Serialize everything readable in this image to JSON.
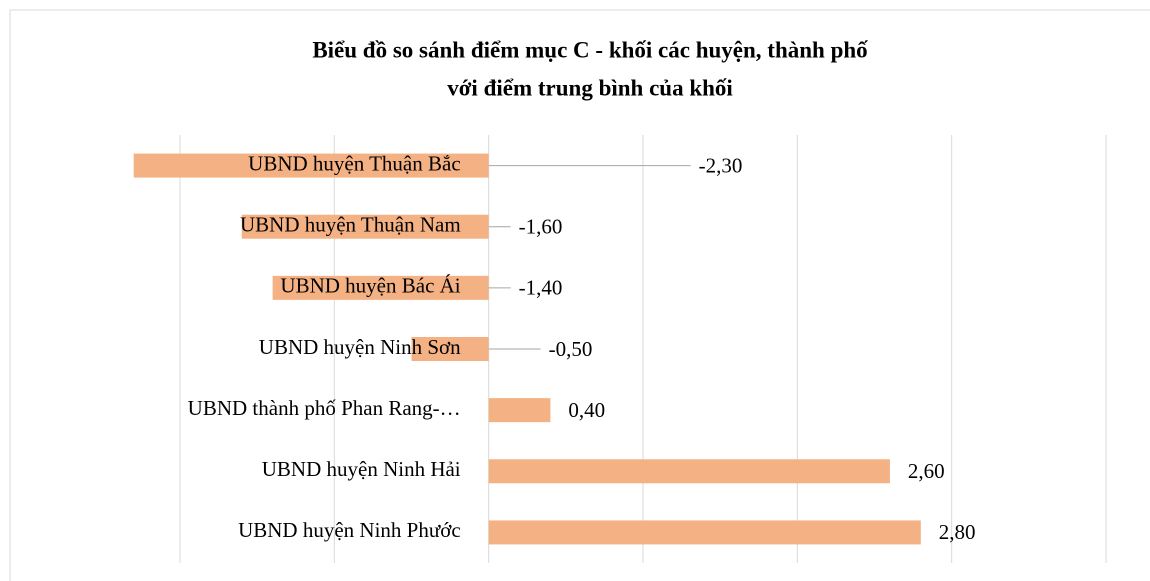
{
  "chart_data": {
    "type": "bar",
    "orientation": "horizontal",
    "title": [
      "Biểu đồ so sánh điểm mục C - khối các huyện, thành phố",
      "với điểm trung bình của khối"
    ],
    "categories": [
      "UBND huyện Thuận Bắc",
      "UBND huyện Thuận Nam",
      "UBND huyện Bác Ái",
      "UBND huyện Ninh Sơn",
      "UBND thành phố Phan Rang-…",
      "UBND huyện Ninh Hải",
      "UBND huyện Ninh Phước"
    ],
    "values": [
      -2.3,
      -1.6,
      -1.4,
      -0.5,
      0.4,
      2.6,
      2.8
    ],
    "value_labels": [
      "-2,30",
      "-1,60",
      "-1,40",
      "-0,50",
      "0,40",
      "2,60",
      "2,80"
    ],
    "color": "#f4b183",
    "xlim": [
      -2,
      4
    ],
    "xticks": [
      -2,
      -1,
      0,
      1,
      2,
      3,
      4
    ],
    "grid": true
  }
}
